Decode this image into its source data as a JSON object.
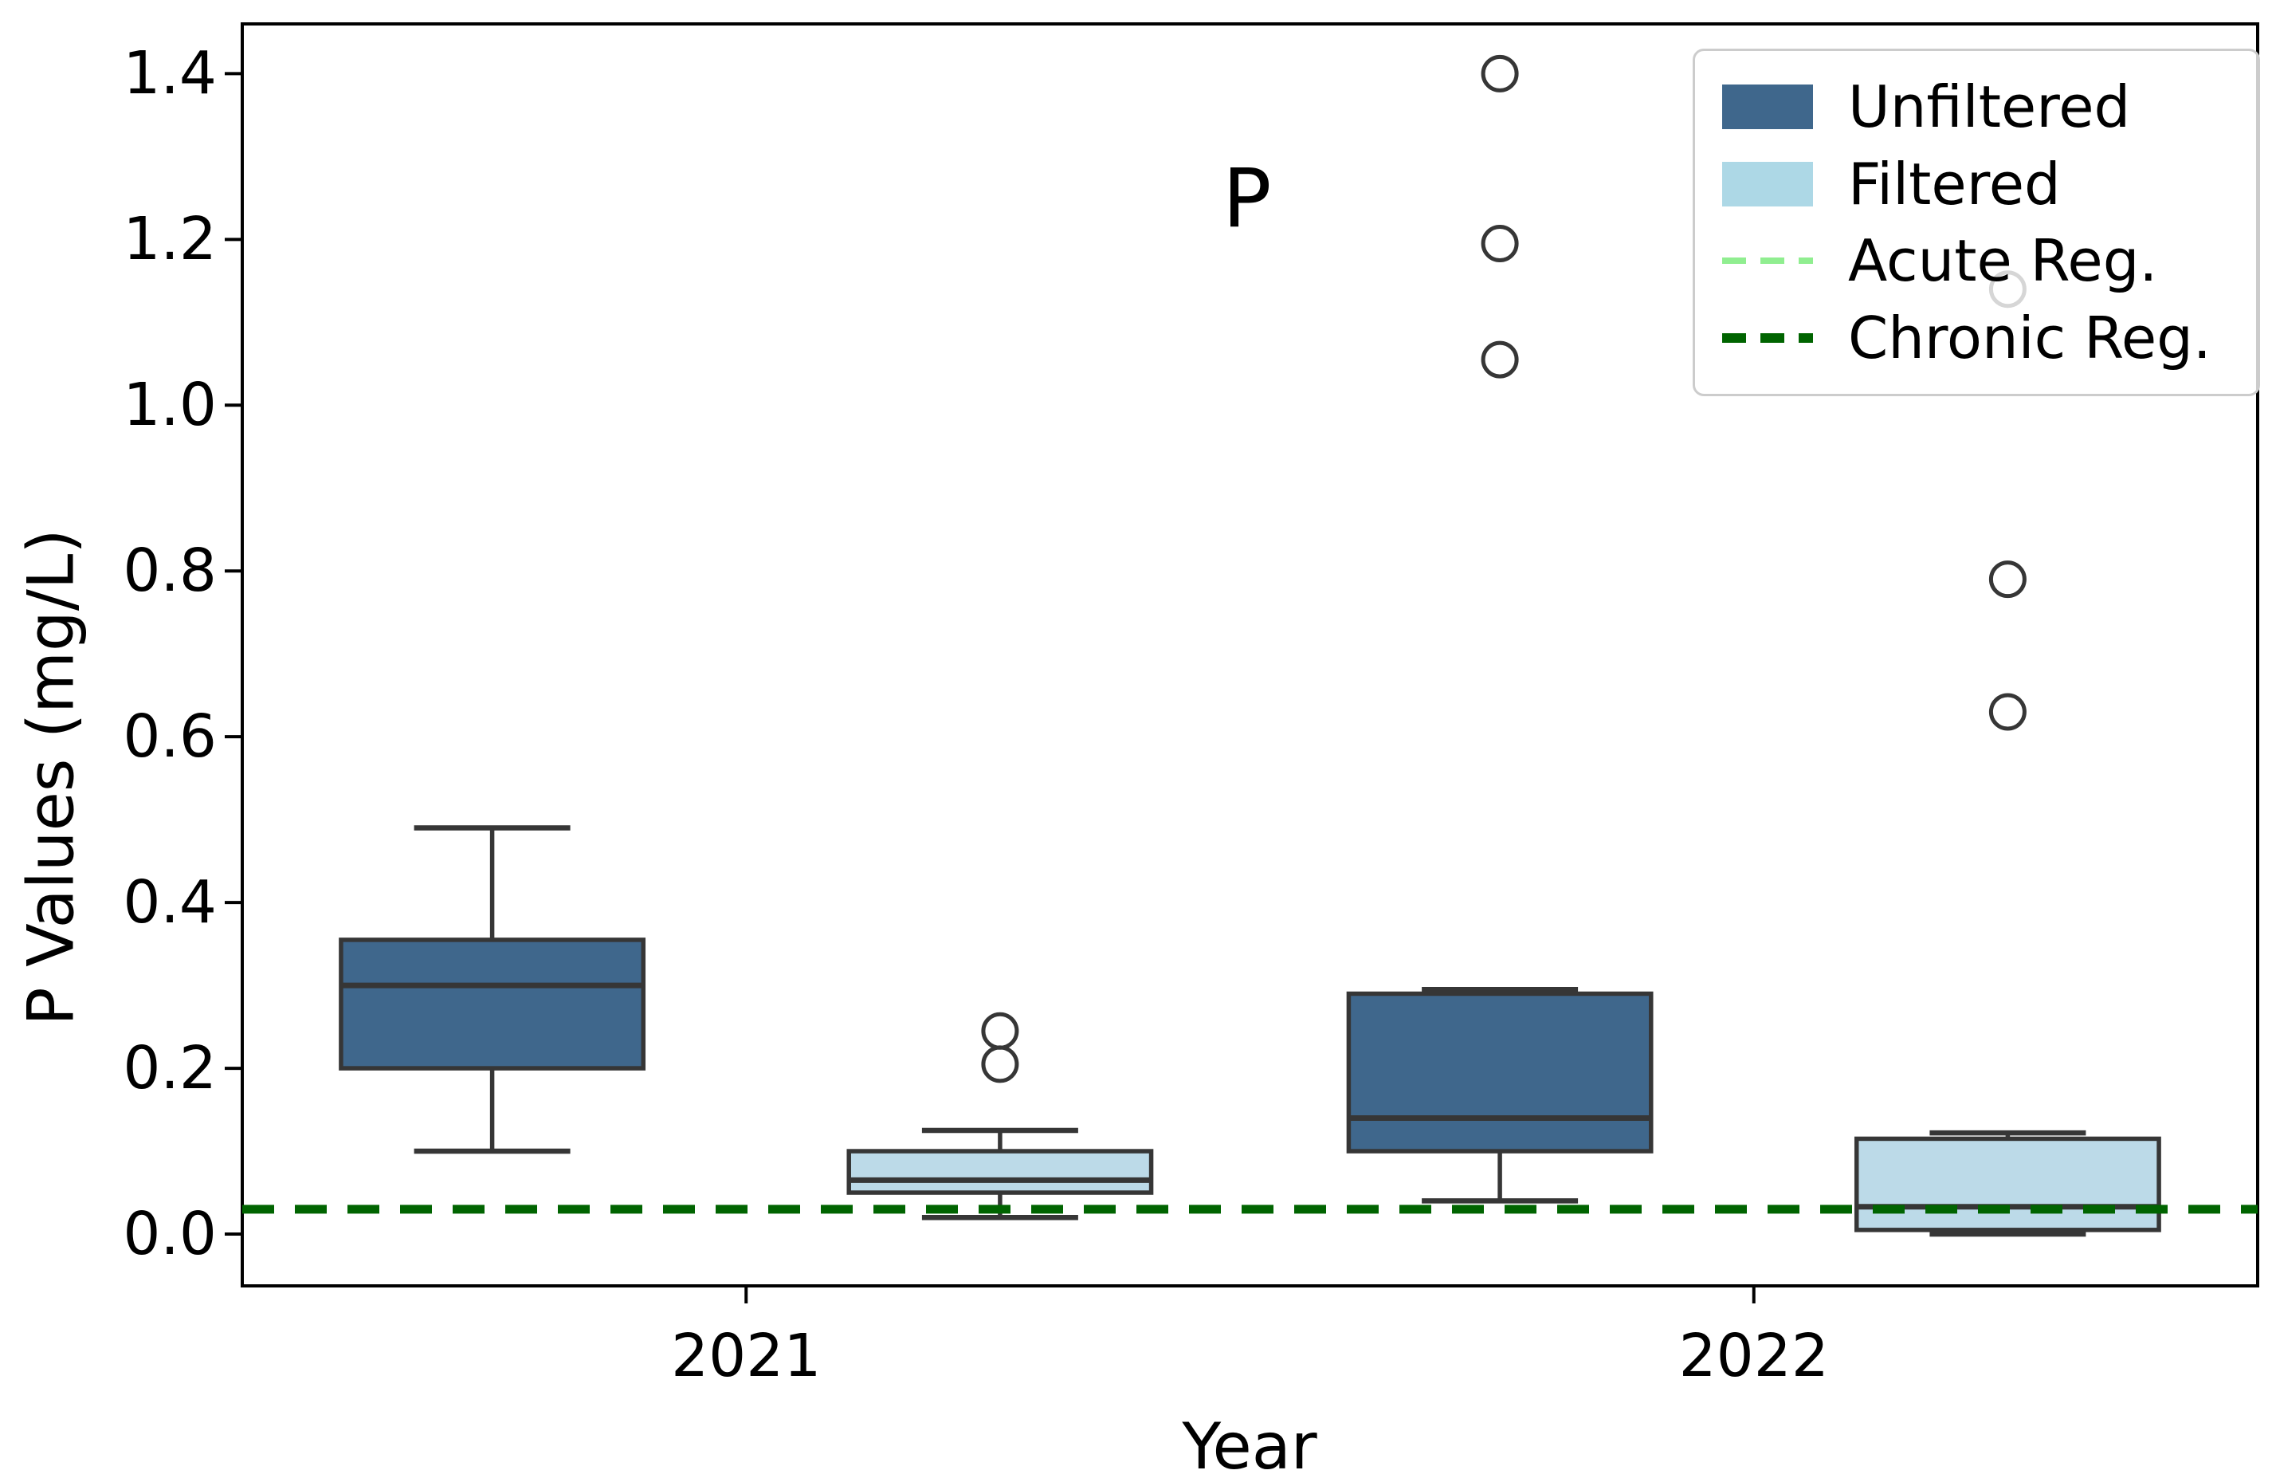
{
  "figure": {
    "background": "#ffffff"
  },
  "chart_data": {
    "type": "boxplot",
    "title": "",
    "xlabel": "Year",
    "ylabel": "P Values (mg/L)",
    "categories": [
      "2021",
      "2022"
    ],
    "series": [
      {
        "name": "Unfiltered",
        "color": "#3F678C",
        "boxes": [
          {
            "category": "2021",
            "whislo": 0.1,
            "q1": 0.2,
            "med": 0.3,
            "q3": 0.355,
            "whishi": 0.49,
            "outliers": []
          },
          {
            "category": "2022",
            "whislo": 0.04,
            "q1": 0.1,
            "med": 0.14,
            "q3": 0.29,
            "whishi": 0.295,
            "outliers": [
              1.055,
              1.195,
              1.4
            ]
          }
        ]
      },
      {
        "name": "Filtered",
        "color": "#BCDAE8",
        "boxes": [
          {
            "category": "2021",
            "whislo": 0.02,
            "q1": 0.05,
            "med": 0.065,
            "q3": 0.1,
            "whishi": 0.125,
            "outliers": [
              0.205,
              0.245
            ]
          },
          {
            "category": "2022",
            "whislo": 0.0,
            "q1": 0.005,
            "med": 0.033,
            "q3": 0.115,
            "whishi": 0.122,
            "outliers": [
              0.63,
              0.79,
              1.14
            ]
          }
        ]
      }
    ],
    "reference_lines": [
      {
        "name": "Acute Reg.",
        "value": 0.03,
        "color": "#90EE90",
        "style": "dashed",
        "linewidth": 8
      },
      {
        "name": "Chronic Reg.",
        "value": 0.03,
        "color": "#006400",
        "style": "dashed",
        "linewidth": 11
      }
    ],
    "annotation": {
      "text": "P",
      "x": 0.497,
      "y": 1.248
    },
    "y_ticks": [
      {
        "value": 0.0,
        "label": "0.0"
      },
      {
        "value": 0.2,
        "label": "0.2"
      },
      {
        "value": 0.4,
        "label": "0.4"
      },
      {
        "value": 0.6,
        "label": "0.6"
      },
      {
        "value": 0.8,
        "label": "0.8"
      },
      {
        "value": 1.0,
        "label": "1.0"
      },
      {
        "value": 1.2,
        "label": "1.2"
      },
      {
        "value": 1.4,
        "label": "1.4"
      }
    ],
    "xlim": [
      -0.5,
      1.5
    ],
    "ylim": [
      -0.0625,
      1.46
    ],
    "x_tick_positions": [
      0,
      1
    ],
    "box_offset": 0.252,
    "box_width": 0.3,
    "cap_width": 0.155,
    "grid": false,
    "legend_position": "upper right",
    "colors": {
      "box_edge": "#363636",
      "spine": "#000000",
      "outlier_edge": "#363636"
    }
  },
  "legend": {
    "items": [
      {
        "label": "Unfiltered",
        "type": "patch",
        "color": "#3F678C"
      },
      {
        "label": "Filtered",
        "type": "patch",
        "color": "#ADD8E6"
      },
      {
        "label": "Acute Reg.",
        "type": "dashed-line",
        "color": "#90EE90",
        "linewidth": 8
      },
      {
        "label": "Chronic Reg.",
        "type": "dashed-line",
        "color": "#006400",
        "linewidth": 12
      }
    ]
  }
}
